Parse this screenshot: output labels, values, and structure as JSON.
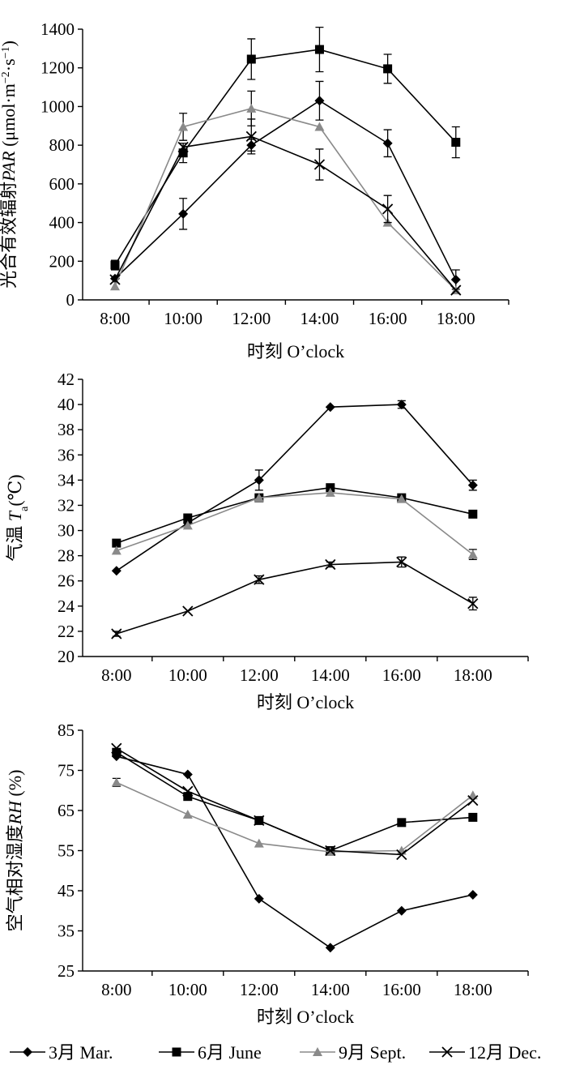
{
  "chart_data": [
    {
      "type": "line",
      "categories": [
        "8:00",
        "10:00",
        "12:00",
        "14:00",
        "16:00",
        "18:00"
      ],
      "xlabel": "时刻 O’clock",
      "ylabel_parts": [
        "光合有效辐射",
        "PAR",
        " (μmol·m",
        "−2",
        "·s",
        "−1",
        ")"
      ],
      "ylim": [
        0,
        1400
      ],
      "yticks": [
        0,
        200,
        400,
        600,
        800,
        1000,
        1200,
        1400
      ],
      "series": [
        {
          "name": "3月 Mar.",
          "marker": "diamond",
          "values": [
            110,
            445,
            800,
            1030,
            810,
            105
          ],
          "errors": [
            0,
            80,
            30,
            100,
            70,
            50
          ]
        },
        {
          "name": "6月 June",
          "marker": "square",
          "values": [
            180,
            760,
            1245,
            1295,
            1195,
            815
          ],
          "errors": [
            25,
            50,
            105,
            115,
            75,
            80
          ]
        },
        {
          "name": "9月 Sept.",
          "marker": "triangle",
          "values": [
            70,
            895,
            990,
            895,
            400,
            50
          ],
          "errors": [
            0,
            70,
            90,
            0,
            0,
            0
          ]
        },
        {
          "name": "12月 Dec.",
          "marker": "cross",
          "values": [
            105,
            790,
            845,
            700,
            470,
            50
          ],
          "errors": [
            0,
            0,
            90,
            80,
            70,
            0
          ]
        }
      ]
    },
    {
      "type": "line",
      "categories": [
        "8:00",
        "10:00",
        "12:00",
        "14:00",
        "16:00",
        "18:00"
      ],
      "xlabel": "时刻 O’clock",
      "ylabel_parts": [
        "气温 ",
        "T",
        "a",
        "(℃)"
      ],
      "ylim": [
        20,
        42
      ],
      "yticks": [
        20,
        22,
        24,
        26,
        28,
        30,
        32,
        34,
        36,
        38,
        40,
        42
      ],
      "series": [
        {
          "name": "3月 Mar.",
          "marker": "diamond",
          "values": [
            26.8,
            30.6,
            34.0,
            39.8,
            40.0,
            33.6
          ],
          "errors": [
            0,
            0,
            0.8,
            0,
            0.3,
            0.4
          ]
        },
        {
          "name": "6月 June",
          "marker": "square",
          "values": [
            29.0,
            31.0,
            32.6,
            33.4,
            32.6,
            31.3
          ],
          "errors": [
            0,
            0,
            0,
            0,
            0,
            0
          ]
        },
        {
          "name": "9月 Sept.",
          "marker": "triangle",
          "values": [
            28.4,
            30.4,
            32.6,
            33.0,
            32.5,
            28.1
          ],
          "errors": [
            0,
            0,
            0,
            0,
            0,
            0.4
          ]
        },
        {
          "name": "12月 Dec.",
          "marker": "cross",
          "values": [
            21.8,
            23.6,
            26.1,
            27.3,
            27.5,
            24.2
          ],
          "errors": [
            0.2,
            0,
            0.3,
            0.2,
            0.4,
            0.5
          ]
        }
      ]
    },
    {
      "type": "line",
      "categories": [
        "8:00",
        "10:00",
        "12:00",
        "14:00",
        "16:00",
        "18:00"
      ],
      "xlabel": "时刻 O’clock",
      "ylabel_parts": [
        "空气相对湿度",
        "RH",
        " (%)"
      ],
      "ylim": [
        25,
        85
      ],
      "yticks": [
        25,
        35,
        45,
        55,
        65,
        75,
        85
      ],
      "series": [
        {
          "name": "3月 Mar.",
          "marker": "diamond",
          "values": [
            78.5,
            74.0,
            43.0,
            30.8,
            40.0,
            44.0
          ],
          "errors": [
            0,
            0,
            0,
            0,
            0,
            0
          ]
        },
        {
          "name": "6月 June",
          "marker": "square",
          "values": [
            79.5,
            68.5,
            62.5,
            55.0,
            62.0,
            63.3
          ],
          "errors": [
            0,
            0,
            0,
            0,
            0,
            0
          ]
        },
        {
          "name": "9月 Sept.",
          "marker": "triangle",
          "values": [
            72.0,
            64.0,
            56.8,
            54.7,
            55.0,
            68.8
          ],
          "errors": [
            1,
            0,
            0,
            0,
            0,
            0
          ]
        },
        {
          "name": "12月 Dec.",
          "marker": "cross",
          "values": [
            80.5,
            69.8,
            62.5,
            55.0,
            54.0,
            67.5
          ],
          "errors": [
            0,
            0,
            0,
            0,
            0,
            0
          ]
        }
      ]
    }
  ],
  "legend": {
    "placement": "bottom",
    "items": [
      {
        "label": "3月 Mar.",
        "marker": "diamond"
      },
      {
        "label": "6月 June",
        "marker": "square"
      },
      {
        "label": "9月 Sept.",
        "marker": "triangle"
      },
      {
        "label": "12月 Dec.",
        "marker": "cross"
      }
    ]
  },
  "colors": {
    "diamond": "#000000",
    "square": "#000000",
    "triangle": "#8a8a8a",
    "cross": "#000000",
    "axis": "#000000"
  }
}
